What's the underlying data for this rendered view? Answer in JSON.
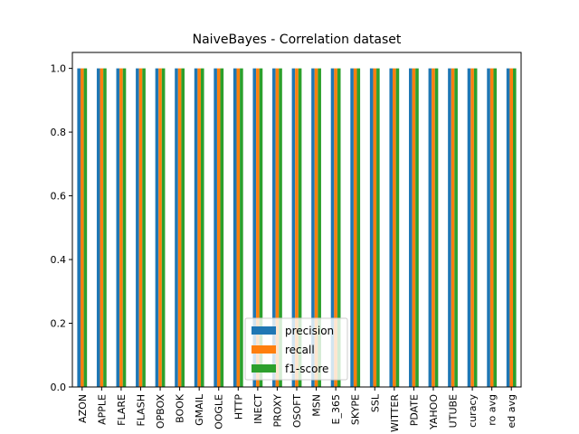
{
  "chart_data": {
    "type": "bar",
    "title": "NaiveBayes - Correlation dataset",
    "xlabel": "",
    "ylabel": "",
    "ylim": [
      0,
      1.05
    ],
    "yticks": [
      "0.0",
      "0.2",
      "0.4",
      "0.6",
      "0.8",
      "1.0"
    ],
    "grid": false,
    "legend_position": "bottom-center",
    "categories": [
      "AZON",
      "APPLE",
      "FLARE",
      "FLASH",
      "OPBOX",
      "BOOK",
      "GMAIL",
      "OOGLE",
      "HTTP",
      "INECT",
      "PROXY",
      "OSOFT",
      "MSN",
      "E_365",
      "SKYPE",
      "SSL",
      "WITTER",
      "PDATE",
      "YAHOO",
      "UTUBE",
      "curacy",
      "ro avg",
      "ed avg"
    ],
    "series": [
      {
        "name": "precision",
        "color": "#1f77b4",
        "values": [
          1,
          1,
          1,
          1,
          1,
          1,
          1,
          1,
          1,
          1,
          1,
          1,
          1,
          1,
          1,
          1,
          1,
          1,
          1,
          1,
          1,
          1,
          1
        ]
      },
      {
        "name": "recall",
        "color": "#ff7f0e",
        "values": [
          1,
          1,
          1,
          1,
          1,
          1,
          1,
          1,
          1,
          1,
          1,
          1,
          1,
          1,
          1,
          1,
          1,
          1,
          1,
          1,
          1,
          1,
          1
        ]
      },
      {
        "name": "f1-score",
        "color": "#2ca02c",
        "values": [
          1,
          1,
          1,
          1,
          1,
          1,
          1,
          1,
          1,
          1,
          1,
          1,
          1,
          1,
          1,
          1,
          1,
          1,
          1,
          1,
          1,
          1,
          1
        ]
      }
    ]
  }
}
